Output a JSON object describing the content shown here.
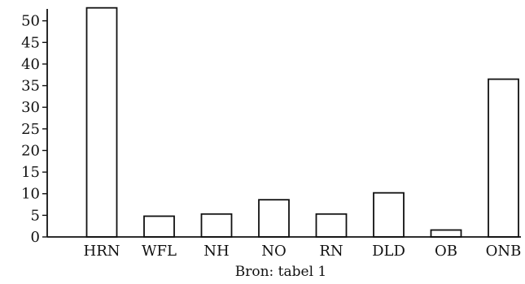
{
  "chart_data": {
    "type": "bar",
    "categories": [
      "HRN",
      "WFL",
      "NH",
      "NO",
      "RN",
      "DLD",
      "OB",
      "ONB"
    ],
    "values": [
      53,
      4.8,
      5.3,
      8.6,
      5.3,
      10.2,
      1.6,
      36.5
    ],
    "yticks": [
      "0",
      "5",
      "10",
      "15",
      "20",
      "25",
      "30",
      "35",
      "40",
      "45",
      "50"
    ],
    "ylim": [
      0,
      52
    ],
    "xlabel": "Bron: tabel 1",
    "ylabel": "",
    "title": "",
    "legend": "none",
    "grid": false,
    "colors": {
      "bar_fill": "#ffffff",
      "bar_stroke": "#111111"
    }
  }
}
